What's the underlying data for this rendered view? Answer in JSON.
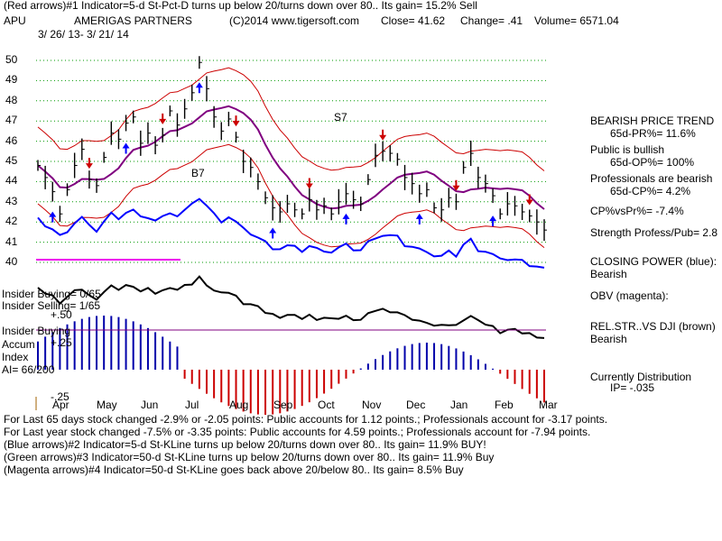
{
  "header": {
    "line1": "(Red arrows)#1 Indicator=5-d St-Pct-D turns up below 20/turns down over 80.. Its gain= 15.2% Sell",
    "ticker": "APU",
    "company": "AMERIGAS PARTNERS",
    "source": "(C)2014 www.tigersoft.com",
    "close": "Close=  41.62",
    "change": "Change= .41",
    "volume": "Volume= 6571.04",
    "date_range": "3/ 26/ 13- 3/ 21/ 14"
  },
  "right_panel": {
    "trend_title": "BEARISH PRICE TREND",
    "pr": "65d-PR%= 11.6%",
    "public": "Public is bullish",
    "op": "65d-OP%= 100%",
    "professionals": "Professionals are bearish",
    "cp": "65d-CP%= 4.2%",
    "cpvspr": "CP%vsPr%= -7.4%",
    "strength": "Strength Profess/Pub= 2.8",
    "closing_power": "CLOSING POWER (blue):",
    "closing_power_value": "Bearish",
    "obv": "OBV (magenta):",
    "relstr": "REL.STR..VS DJI (brown)",
    "relstr_value": "Bearish",
    "distribution": "Currently Distribution",
    "ip": "IP= -.035"
  },
  "insider": {
    "buying": "Insider Buying= 0/65",
    "selling": "Insider Selling= 1/65",
    "plus50": "+.50",
    "buying2": "Insider Buying",
    "accum": "Accum",
    "plus25": "+.25",
    "index": "Index",
    "ai": "AI= 66/200",
    "minus25": "-.25"
  },
  "footer": {
    "line1": "For Last 65 days stock changed -2.9% or -2.05 points:  Public accounts for  1.12 points.;  Professionals account for -3.17 points.",
    "line2": "For Last year stock changed -7.5% or -3.35 points:  Public accounts for  4.59 points.;  Professionals account for -7.94 points.",
    "line3": "(Blue arrows)#2 Indicator=5-d St-KLine turns up below 20/turns down over 80.. Its gain= 11.9% BUY!",
    "line4": "(Green arrows)#3 Indicator=50-d St-KLine turns up below 20/turns down over 80.. Its gain= 11.9% Buy",
    "line5": "(Magenta arrows)#4 Indicator=50-d St-KLine goes back above 20/below 80.. Its gain= 8.5% Buy"
  },
  "annotations": {
    "s7": "S7",
    "b7": "B7",
    "s7b": "S7"
  },
  "colors": {
    "price": "#000000",
    "band": "#cc0000",
    "ma": "#800080",
    "closing_power": "#0000ff",
    "obv": "#ee00ee",
    "relstr": "#000000",
    "accum_pos": "#0000aa",
    "accum_neg": "#cc0000",
    "grid": "#009900"
  },
  "chart_data": {
    "type": "line",
    "title": "AMERIGAS PARTNERS",
    "x_ticks": [
      "Apr",
      "May",
      "Jun",
      "Jul",
      "Aug",
      "Sep",
      "Oct",
      "Nov",
      "Dec",
      "Jan",
      "Feb",
      "Mar"
    ],
    "y_ticks": [
      40,
      41,
      42,
      43,
      44,
      45,
      46,
      47,
      48,
      49,
      50
    ],
    "ylim": [
      39.5,
      50.5
    ],
    "grid": true,
    "price": [
      44.8,
      44.2,
      43.5,
      42.4,
      43.6,
      44.8,
      45.6,
      44.1,
      43.8,
      45.2,
      46.4,
      46.1,
      46.9,
      47.2,
      45.9,
      46.4,
      45.8,
      46.3,
      47.5,
      46.8,
      47.6,
      48.4,
      49.9,
      48.6,
      47.2,
      46.5,
      47.1,
      46.2,
      45.0,
      44.7,
      44.0,
      43.2,
      42.7,
      42.5,
      42.9,
      42.6,
      42.4,
      43.1,
      42.6,
      42.8,
      42.4,
      43.0,
      43.4,
      43.1,
      42.9,
      44.1,
      45.3,
      45.5,
      45.4,
      45.1,
      44.2,
      43.9,
      43.4,
      43.6,
      42.7,
      42.6,
      43.2,
      43.0,
      44.7,
      45.4,
      44.2,
      43.9,
      43.3,
      42.4,
      42.9,
      42.8,
      42.5,
      42.3,
      42.0,
      41.6
    ]
  }
}
